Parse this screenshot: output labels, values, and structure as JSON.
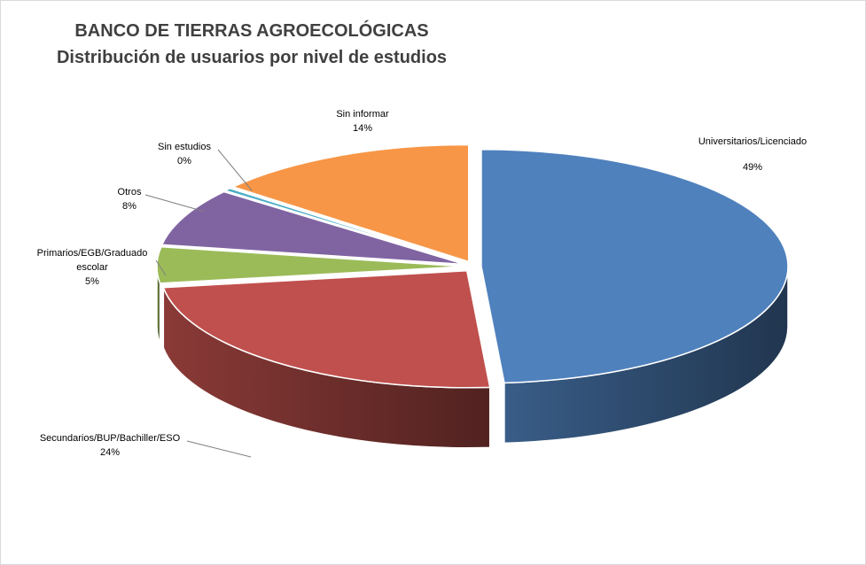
{
  "chart_data": {
    "type": "pie",
    "title": "BANCO DE TIERRAS AGROECOLÓGICAS",
    "subtitle": "Distribución de usuarios por nivel de estudios",
    "three_d": true,
    "exploded": true,
    "legend": "none",
    "slices": [
      {
        "label_lines": [
          "Universitarios/Licenciado"
        ],
        "pct_text": "49%",
        "value": 49,
        "color": "#4f81bd"
      },
      {
        "label_lines": [
          "Secundarios/BUP/Bachiller/ESO"
        ],
        "pct_text": "24%",
        "value": 24,
        "color": "#c0504d"
      },
      {
        "label_lines": [
          "Primarios/EGB/Graduado",
          "escolar"
        ],
        "pct_text": "5%",
        "value": 5,
        "color": "#9bbb59"
      },
      {
        "label_lines": [
          "Otros"
        ],
        "pct_text": "8%",
        "value": 8,
        "color": "#8064a2"
      },
      {
        "label_lines": [
          "Sin estudios"
        ],
        "pct_text": "0%",
        "value": 0.4,
        "color": "#4bacc6"
      },
      {
        "label_lines": [
          "Sin informar"
        ],
        "pct_text": "14%",
        "value": 14,
        "color": "#f79646"
      }
    ]
  }
}
